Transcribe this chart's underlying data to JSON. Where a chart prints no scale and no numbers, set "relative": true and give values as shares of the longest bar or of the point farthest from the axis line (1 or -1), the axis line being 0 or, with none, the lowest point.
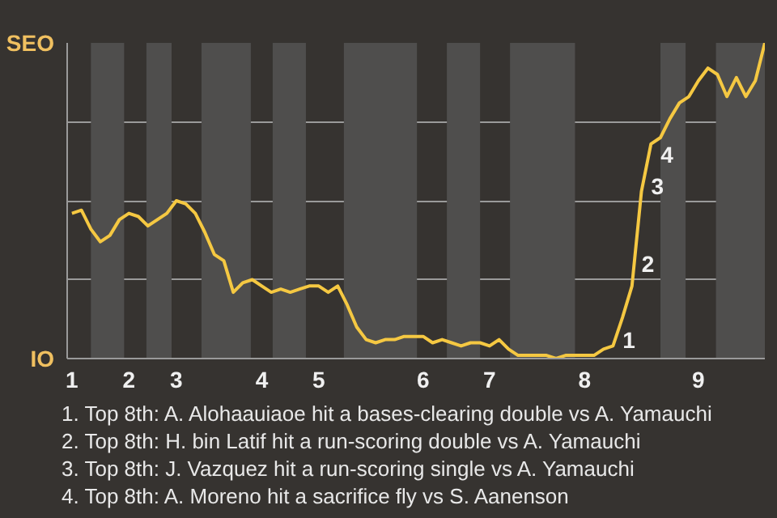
{
  "chart_data": {
    "type": "line",
    "relative": true,
    "categories": [
      "1",
      null,
      null,
      null,
      null,
      null,
      "2",
      null,
      null,
      null,
      null,
      "3",
      null,
      null,
      null,
      null,
      null,
      null,
      null,
      null,
      "4",
      null,
      null,
      null,
      null,
      null,
      "5",
      null,
      null,
      null,
      null,
      null,
      null,
      null,
      null,
      null,
      null,
      "6",
      null,
      null,
      null,
      null,
      null,
      null,
      "7",
      null,
      null,
      null,
      null,
      null,
      null,
      null,
      null,
      null,
      "8",
      null,
      null,
      null,
      null,
      null,
      null,
      null,
      null,
      null,
      null,
      null,
      "9",
      null,
      null,
      null,
      null,
      null,
      null,
      null
    ],
    "series": [
      {
        "color": "#f5c842",
        "values": [
          0.46,
          0.47,
          0.41,
          0.37,
          0.39,
          0.44,
          0.46,
          0.45,
          0.42,
          0.44,
          0.46,
          0.5,
          0.49,
          0.46,
          0.4,
          0.33,
          0.31,
          0.21,
          0.24,
          0.25,
          0.23,
          0.21,
          0.22,
          0.21,
          0.22,
          0.23,
          0.23,
          0.21,
          0.23,
          0.17,
          0.1,
          0.06,
          0.05,
          0.06,
          0.06,
          0.07,
          0.07,
          0.07,
          0.05,
          0.06,
          0.05,
          0.04,
          0.05,
          0.05,
          0.04,
          0.06,
          0.03,
          0.01,
          0.01,
          0.01,
          0.01,
          0.0,
          0.01,
          0.01,
          0.01,
          0.01,
          0.03,
          0.04,
          0.13,
          0.23,
          0.53,
          0.68,
          0.7,
          0.76,
          0.81,
          0.83,
          0.88,
          0.92,
          0.9,
          0.83,
          0.89,
          0.83,
          0.88,
          1.0
        ]
      }
    ],
    "grid": "y",
    "annotations": [
      "SEO",
      "IO",
      "1",
      "2",
      "3",
      "4",
      "1. Top 8th: A. Alohaauiaoe hit a bases-clearing double vs A. Yamauchi",
      "2. Top 8th: H. bin Latif hit a run-scoring double vs A. Yamauchi",
      "3. Top 8th: J. Vazquez hit a run-scoring single vs A. Yamauchi",
      "4. Top 8th: A. Moreno hit a sacrifice fly vs S. Aanenson"
    ]
  }
}
